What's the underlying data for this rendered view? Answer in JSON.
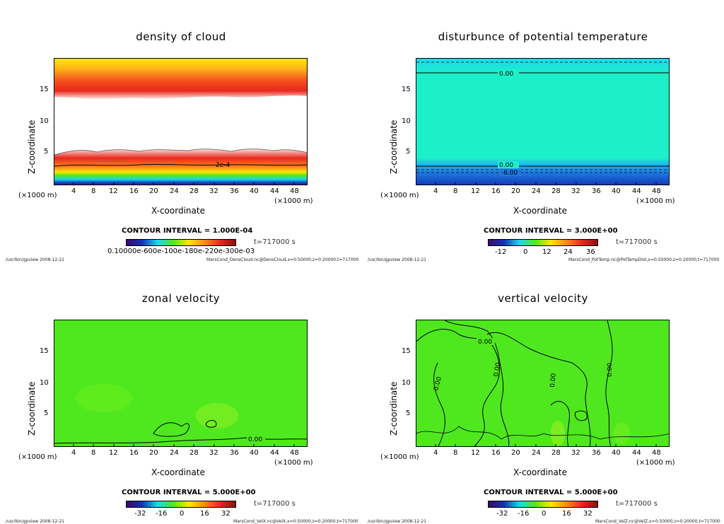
{
  "common": {
    "ylabel": "Z-coordinate",
    "xlabel": "X-coordinate",
    "unit_left": "(×1000 m)",
    "unit_right": "(×1000 m)",
    "xticks": [
      "4",
      "8",
      "12",
      "16",
      "20",
      "24",
      "28",
      "32",
      "36",
      "40",
      "44",
      "48"
    ],
    "yticks": [
      "5",
      "10",
      "15"
    ],
    "time": "t=717000  s",
    "footer_left": "/usr/bin/gpview   2008-12-21"
  },
  "chart_data": [
    {
      "type": "heatmap",
      "title": "density of cloud",
      "xlabel": "X-coordinate",
      "ylabel": "Z-coordinate",
      "xlim": [
        0,
        50
      ],
      "ylim": [
        0,
        20
      ],
      "contour_interval": "CONTOUR INTERVAL = 1.000E-04",
      "contour_labels": [
        "2e-4"
      ],
      "colorbar_ticks": [
        "0.10000E-03",
        "0.20000E-03",
        "0.30000E-03"
      ],
      "colorbar_label_raw": "0.10000e-600e-100e-180e-220e-300e-03",
      "footer_right": "MarsCond_DensCloud.nc@DensCloud,x=0:50000,z=0:20000,t=717000"
    },
    {
      "type": "heatmap",
      "title": "disturbunce of potential temperature",
      "xlabel": "X-coordinate",
      "ylabel": "Z-coordinate",
      "xlim": [
        0,
        50
      ],
      "ylim": [
        0,
        20
      ],
      "contour_interval": "CONTOUR INTERVAL = 3.000E+00",
      "contour_labels": [
        "0.00",
        "0.00",
        "-6.00"
      ],
      "colorbar_ticks": [
        "-12",
        "0",
        "12",
        "24",
        "36"
      ],
      "footer_right": "MarsCond_PotTemp.nc@PotTempDist,x=0:50000,z=0:20000,t=717000"
    },
    {
      "type": "heatmap",
      "title": "zonal velocity",
      "xlabel": "X-coordinate",
      "ylabel": "Z-coordinate",
      "xlim": [
        0,
        50
      ],
      "ylim": [
        0,
        20
      ],
      "contour_interval": "CONTOUR INTERVAL = 5.000E+00",
      "contour_labels": [
        "0.00"
      ],
      "colorbar_ticks": [
        "-32",
        "-16",
        "0",
        "16",
        "32"
      ],
      "footer_right": "MarsCond_VelX.nc@VelX,x=0:50000,z=0:20000,t=717000"
    },
    {
      "type": "heatmap",
      "title": "vertical velocity",
      "xlabel": "X-coordinate",
      "ylabel": "Z-coordinate",
      "xlim": [
        0,
        50
      ],
      "ylim": [
        0,
        20
      ],
      "contour_interval": "CONTOUR INTERVAL = 5.000E+00",
      "contour_labels": [
        "0.00",
        "0.00",
        "0.00",
        "0.00",
        "0.00"
      ],
      "colorbar_ticks": [
        "-32",
        "-16",
        "0",
        "16",
        "32"
      ],
      "footer_right": "MarsCond_VelZ.nc@VelZ,x=0:50000,z=0:20000,t=717000"
    }
  ],
  "colors": {
    "cloud_red": "#e8281e",
    "cloud_orange": "#ff8c1a",
    "cloud_yellow": "#ffe600",
    "temp_cyan": "#1cf0c8",
    "temp_blue": "#1432b4",
    "vel_green": "#4fe81e"
  }
}
